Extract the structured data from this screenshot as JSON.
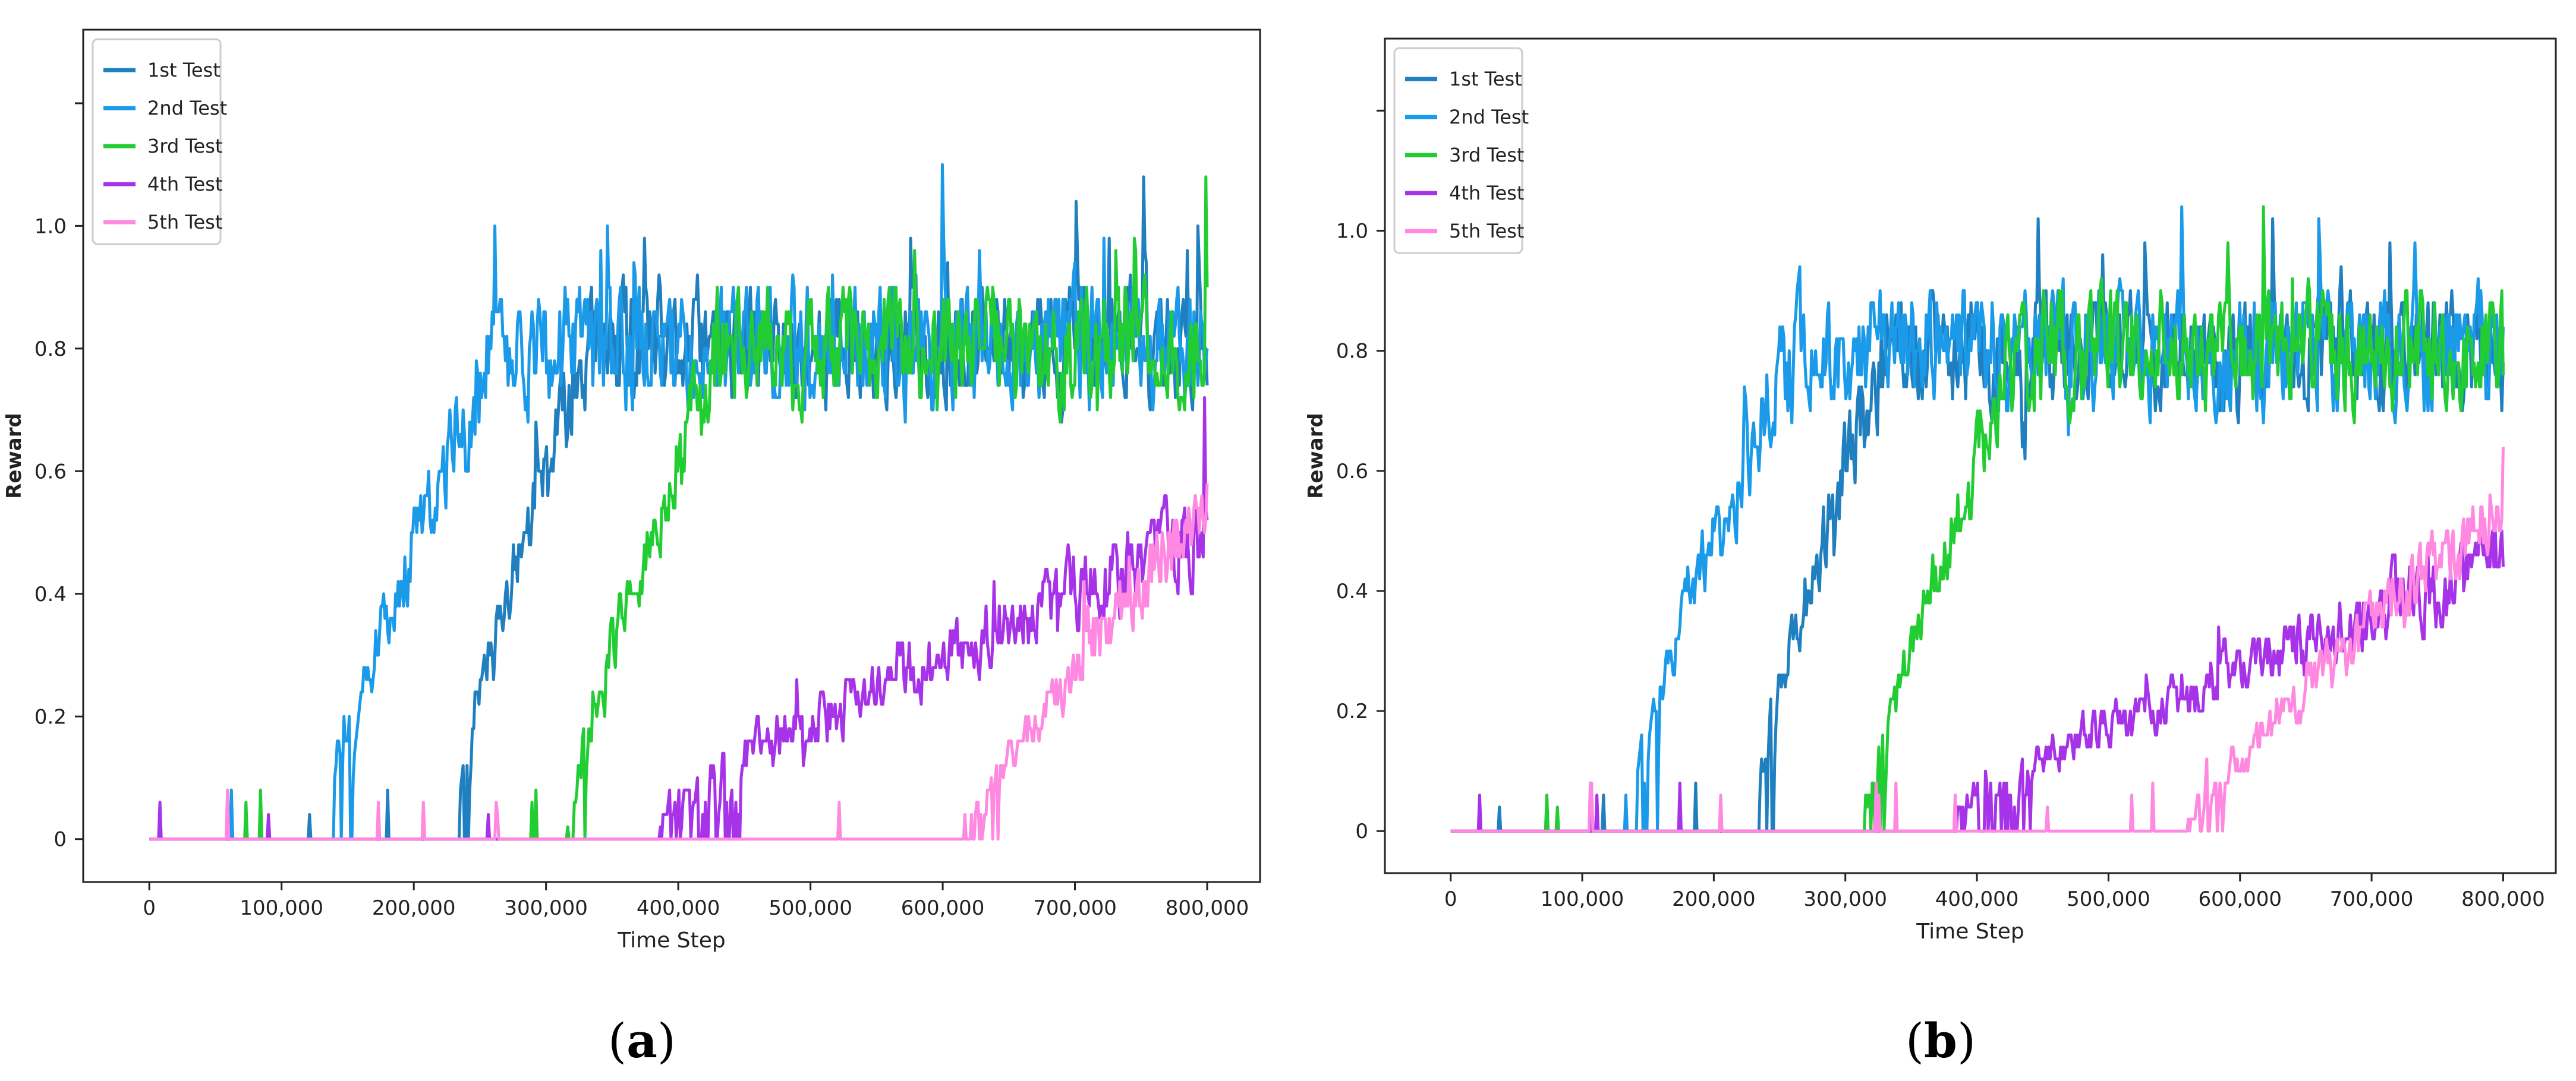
{
  "chart_data": [
    {
      "type": "line",
      "panel_label": {
        "open": "(",
        "letter": "a",
        "close": ")"
      },
      "title": "",
      "xlabel": "Time Step",
      "ylabel": "Reward",
      "xlim": [
        -50000,
        840000
      ],
      "ylim": [
        -0.07,
        1.32
      ],
      "xticks": [
        0,
        100000,
        200000,
        300000,
        400000,
        500000,
        600000,
        700000,
        800000
      ],
      "xtick_labels": [
        "0",
        "100,000",
        "200,000",
        "300,000",
        "400,000",
        "500,000",
        "600,000",
        "700,000",
        "800,000"
      ],
      "yticks": [
        0,
        0.2,
        0.4,
        0.6,
        0.8,
        1.0,
        1.2
      ],
      "ytick_labels": [
        "0",
        "0.2",
        "0.4",
        "0.6",
        "0.8",
        "1.0",
        ""
      ],
      "grid": false,
      "legend": "top-left",
      "n_points": 800,
      "seed": 11,
      "series": [
        {
          "name": "1st Test",
          "color": "#1f7fbf",
          "onset": 235000,
          "ramp_end": 330000,
          "plateau": 0.8,
          "start_level": 0.12,
          "noise": 0.14
        },
        {
          "name": "2nd Test",
          "color": "#1a9ae8",
          "onset": 140000,
          "ramp_end": 260000,
          "plateau": 0.8,
          "start_level": 0.12,
          "noise": 0.15
        },
        {
          "name": "3rd Test",
          "color": "#22cc33",
          "onset": 315000,
          "ramp_end": 430000,
          "plateau": 0.8,
          "start_level": 0.05,
          "noise": 0.14
        },
        {
          "name": "4th Test",
          "color": "#a633e8",
          "onset": 385000,
          "ramp_end": 800000,
          "plateau": 0.5,
          "start_level": 0.05,
          "noise": 0.11
        },
        {
          "name": "5th Test",
          "color": "#ff88e0",
          "onset": 615000,
          "ramp_end": 800000,
          "plateau": 0.55,
          "start_level": 0.02,
          "noise": 0.1
        }
      ]
    },
    {
      "type": "line",
      "panel_label": {
        "open": "(",
        "letter": "b",
        "close": ")"
      },
      "title": "",
      "xlabel": "Time Step",
      "ylabel": "Reward",
      "xlim": [
        -50000,
        840000
      ],
      "ylim": [
        -0.07,
        1.32
      ],
      "xticks": [
        0,
        100000,
        200000,
        300000,
        400000,
        500000,
        600000,
        700000,
        800000
      ],
      "xtick_labels": [
        "0",
        "100,000",
        "200,000",
        "300,000",
        "400,000",
        "500,000",
        "600,000",
        "700,000",
        "800,000"
      ],
      "yticks": [
        0,
        0.2,
        0.4,
        0.6,
        0.8,
        1.0,
        1.2
      ],
      "ytick_labels": [
        "0",
        "0.2",
        "0.4",
        "0.6",
        "0.8",
        "1.0",
        ""
      ],
      "grid": false,
      "legend": "top-left",
      "n_points": 800,
      "seed": 29,
      "series": [
        {
          "name": "1st Test",
          "color": "#1f7fbf",
          "onset": 235000,
          "ramp_end": 330000,
          "plateau": 0.8,
          "start_level": 0.12,
          "noise": 0.14
        },
        {
          "name": "2nd Test",
          "color": "#1a9ae8",
          "onset": 140000,
          "ramp_end": 260000,
          "plateau": 0.8,
          "start_level": 0.12,
          "noise": 0.15
        },
        {
          "name": "3rd Test",
          "color": "#22cc33",
          "onset": 315000,
          "ramp_end": 430000,
          "plateau": 0.8,
          "start_level": 0.05,
          "noise": 0.14
        },
        {
          "name": "4th Test",
          "color": "#a633e8",
          "onset": 385000,
          "ramp_end": 800000,
          "plateau": 0.45,
          "start_level": 0.05,
          "noise": 0.1
        },
        {
          "name": "5th Test",
          "color": "#ff88e0",
          "onset": 560000,
          "ramp_end": 800000,
          "plateau": 0.55,
          "start_level": 0.02,
          "noise": 0.1
        }
      ]
    }
  ]
}
